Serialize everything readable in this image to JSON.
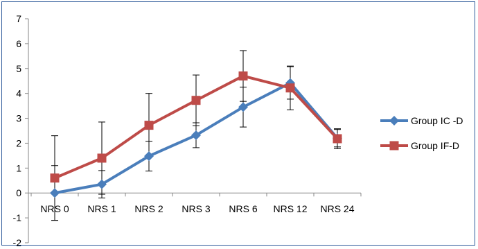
{
  "chart_data": {
    "type": "line",
    "categories": [
      "NRS 0",
      "NRS 1",
      "NRS 2",
      "NRS 3",
      "NRS 6",
      "NRS 12",
      "NRS 24"
    ],
    "ylim": [
      -2,
      7
    ],
    "yticks": [
      -2,
      -1,
      0,
      1,
      2,
      3,
      4,
      5,
      6,
      7
    ],
    "grid": false,
    "legend_position": "right",
    "series": [
      {
        "name": "Group IC -D",
        "color": "#4a7ebb",
        "marker": "diamond",
        "values": [
          0,
          0.35,
          1.48,
          2.32,
          3.45,
          4.42,
          2.2
        ],
        "error": [
          1.1,
          0.55,
          0.6,
          0.5,
          0.8,
          0.65,
          0.35
        ]
      },
      {
        "name": "Group IF-D",
        "color": "#be4b48",
        "marker": "square",
        "values": [
          0.6,
          1.4,
          2.72,
          3.72,
          4.7,
          4.22,
          2.18
        ],
        "error": [
          1.7,
          1.45,
          1.28,
          1.02,
          1.02,
          0.88,
          0.4
        ]
      }
    ]
  }
}
